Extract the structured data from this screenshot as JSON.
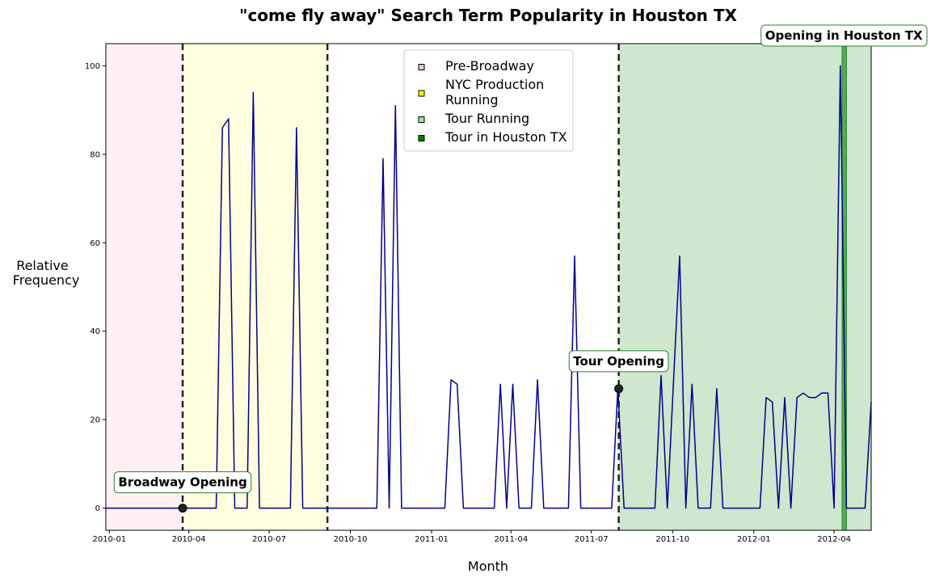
{
  "chart_data": {
    "type": "line",
    "title": "\"come fly away\" Search Term Popularity in Houston TX",
    "xlabel": "Month",
    "ylabel_lines": [
      "Relative",
      "Frequency"
    ],
    "x_range": [
      "2009-12-28",
      "2012-05-13"
    ],
    "ylim": [
      -5,
      105
    ],
    "x_ticks": [
      {
        "date": "2010-01-01",
        "label": "2010-01"
      },
      {
        "date": "2010-04-01",
        "label": "2010-04"
      },
      {
        "date": "2010-07-01",
        "label": "2010-07"
      },
      {
        "date": "2010-10-01",
        "label": "2010-10"
      },
      {
        "date": "2011-01-01",
        "label": "2011-01"
      },
      {
        "date": "2011-04-01",
        "label": "2011-04"
      },
      {
        "date": "2011-07-01",
        "label": "2011-07"
      },
      {
        "date": "2011-10-01",
        "label": "2011-10"
      },
      {
        "date": "2012-01-01",
        "label": "2012-01"
      },
      {
        "date": "2012-04-01",
        "label": "2012-04"
      }
    ],
    "y_ticks": [
      0,
      20,
      40,
      60,
      80,
      100
    ],
    "series": [
      {
        "color": "#00008b",
        "points": [
          [
            "2009-12-28",
            0
          ],
          [
            "2010-05-02",
            0
          ],
          [
            "2010-05-09",
            86
          ],
          [
            "2010-05-16",
            88
          ],
          [
            "2010-05-23",
            0
          ],
          [
            "2010-06-06",
            0
          ],
          [
            "2010-06-13",
            94
          ],
          [
            "2010-06-20",
            0
          ],
          [
            "2010-07-25",
            0
          ],
          [
            "2010-08-01",
            86
          ],
          [
            "2010-08-08",
            0
          ],
          [
            "2010-10-31",
            0
          ],
          [
            "2010-11-07",
            79
          ],
          [
            "2010-11-14",
            0
          ],
          [
            "2010-11-21",
            91
          ],
          [
            "2010-11-28",
            0
          ],
          [
            "2011-01-16",
            0
          ],
          [
            "2011-01-23",
            29
          ],
          [
            "2011-01-30",
            28
          ],
          [
            "2011-02-06",
            0
          ],
          [
            "2011-03-13",
            0
          ],
          [
            "2011-03-20",
            28
          ],
          [
            "2011-03-27",
            0
          ],
          [
            "2011-04-03",
            28
          ],
          [
            "2011-04-10",
            0
          ],
          [
            "2011-04-24",
            0
          ],
          [
            "2011-05-01",
            29
          ],
          [
            "2011-05-08",
            0
          ],
          [
            "2011-06-05",
            0
          ],
          [
            "2011-06-12",
            57
          ],
          [
            "2011-06-19",
            0
          ],
          [
            "2011-07-24",
            0
          ],
          [
            "2011-07-31",
            27
          ],
          [
            "2011-08-07",
            0
          ],
          [
            "2011-09-11",
            0
          ],
          [
            "2011-09-18",
            30
          ],
          [
            "2011-09-25",
            0
          ],
          [
            "2011-10-09",
            57
          ],
          [
            "2011-10-16",
            0
          ],
          [
            "2011-10-23",
            28
          ],
          [
            "2011-10-30",
            0
          ],
          [
            "2011-11-13",
            0
          ],
          [
            "2011-11-20",
            27
          ],
          [
            "2011-11-27",
            0
          ],
          [
            "2012-01-08",
            0
          ],
          [
            "2012-01-15",
            25
          ],
          [
            "2012-01-22",
            24
          ],
          [
            "2012-01-29",
            0
          ],
          [
            "2012-02-05",
            25
          ],
          [
            "2012-02-12",
            0
          ],
          [
            "2012-02-19",
            25
          ],
          [
            "2012-02-26",
            26
          ],
          [
            "2012-03-04",
            25
          ],
          [
            "2012-03-11",
            25
          ],
          [
            "2012-03-18",
            26
          ],
          [
            "2012-03-25",
            26
          ],
          [
            "2012-04-01",
            0
          ],
          [
            "2012-04-08",
            100
          ],
          [
            "2012-04-15",
            0
          ],
          [
            "2012-04-22",
            0
          ],
          [
            "2012-05-06",
            0
          ],
          [
            "2012-05-13",
            24
          ]
        ]
      }
    ],
    "shaded_regions": [
      {
        "name": "Pre-Broadway",
        "start": "2009-12-28",
        "end": "2010-03-25",
        "color": "#fff0f5"
      },
      {
        "name": "NYC Production Running",
        "start": "2010-03-25",
        "end": "2010-09-05",
        "color": "#ffffe0"
      },
      {
        "name": "Tour Running",
        "start": "2011-08-01",
        "end": "2012-05-13",
        "color": "#cfe6cf"
      },
      {
        "name": "Tour in Houston TX",
        "start": "2012-04-10",
        "end": "2012-04-15",
        "color": "#4caf50"
      }
    ],
    "vlines": [
      "2010-03-25",
      "2010-09-05",
      "2011-08-01"
    ],
    "annotations": [
      {
        "text": "Broadway Opening",
        "date": "2010-03-25",
        "y": 0,
        "marker": true
      },
      {
        "text": "Tour Opening",
        "date": "2011-08-01",
        "y": 27,
        "marker": true
      },
      {
        "text": "Opening in Houston TX",
        "date": "2012-04-12",
        "y": 105,
        "marker": false
      }
    ],
    "legend": {
      "placement": "top-center",
      "entries": [
        {
          "lines": [
            "Pre-Broadway"
          ],
          "color": "#ffc0cb"
        },
        {
          "lines": [
            "NYC Production",
            "Running"
          ],
          "color": "#ffff00"
        },
        {
          "lines": [
            "Tour Running"
          ],
          "color": "#90ee90"
        },
        {
          "lines": [
            "Tour in Houston TX"
          ],
          "color": "#008000"
        }
      ]
    },
    "grid": false
  }
}
